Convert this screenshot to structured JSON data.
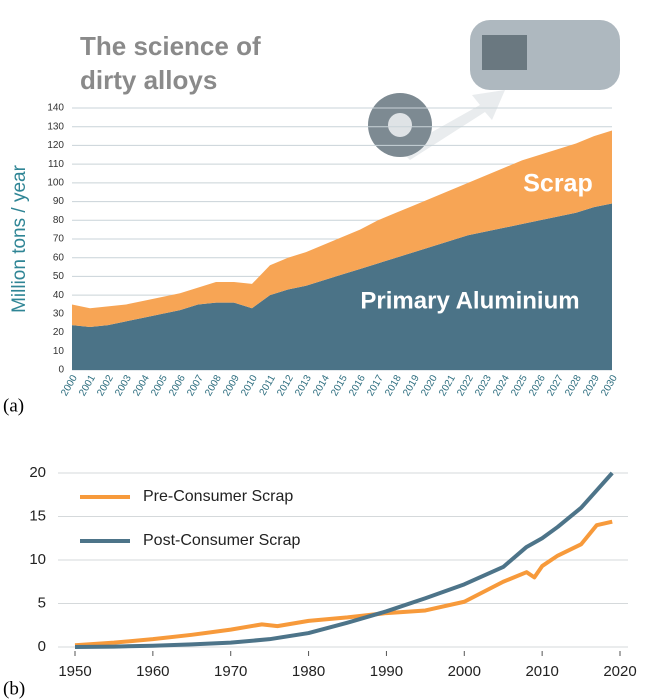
{
  "chart_data": [
    {
      "type": "stacked-area",
      "label": "(a)",
      "title": [
        "The science of",
        "dirty alloys"
      ],
      "y_label": "Million tons / year",
      "categories": [
        "2000",
        "2001",
        "2002",
        "2003",
        "2004",
        "2005",
        "2006",
        "2007",
        "2008",
        "2009",
        "2010",
        "2011",
        "2012",
        "2013",
        "2014",
        "2015",
        "2016",
        "2017",
        "2018",
        "2019",
        "2020",
        "2021",
        "2022",
        "2023",
        "2024",
        "2025",
        "2026",
        "2027",
        "2028",
        "2029",
        "2030"
      ],
      "series": [
        {
          "name": "Primary Aluminium",
          "color": "#4b7387",
          "values": [
            24,
            23,
            24,
            26,
            28,
            30,
            32,
            35,
            36,
            36,
            33,
            40,
            43,
            45,
            48,
            51,
            54,
            57,
            60,
            63,
            66,
            69,
            72,
            74,
            76,
            78,
            80,
            82,
            84,
            87,
            89
          ]
        },
        {
          "name": "Scrap",
          "color": "#f7a555",
          "values": [
            11,
            10,
            10,
            9,
            9,
            9,
            9,
            9,
            11,
            11,
            13,
            16,
            17,
            18,
            19,
            20,
            21,
            23,
            24,
            25,
            26,
            27,
            28,
            30,
            32,
            34,
            35,
            36,
            37,
            38,
            39
          ]
        }
      ],
      "ylim": [
        0,
        140
      ],
      "yticks": [
        0,
        10,
        20,
        30,
        40,
        50,
        60,
        70,
        80,
        90,
        100,
        110,
        120,
        130,
        140
      ],
      "grid": true
    },
    {
      "type": "line",
      "label": "(b)",
      "legend": "upper left",
      "series": [
        {
          "name": "Pre-Consumer Scrap",
          "color": "#f79a3b",
          "x": [
            1950,
            1955,
            1960,
            1965,
            1970,
            1974,
            1976,
            1980,
            1985,
            1990,
            1995,
            2000,
            2005,
            2008,
            2009,
            2010,
            2012,
            2015,
            2017,
            2019
          ],
          "values": [
            0.2,
            0.5,
            0.9,
            1.4,
            2.0,
            2.6,
            2.4,
            3.0,
            3.4,
            3.9,
            4.2,
            5.2,
            7.5,
            8.6,
            8.0,
            9.3,
            10.5,
            11.8,
            14.0,
            14.4
          ]
        },
        {
          "name": "Post-Consumer Scrap",
          "color": "#4d7489",
          "x": [
            1950,
            1955,
            1960,
            1965,
            1970,
            1975,
            1980,
            1985,
            1990,
            1995,
            2000,
            2005,
            2008,
            2010,
            2012,
            2015,
            2017,
            2019
          ],
          "values": [
            0,
            0.05,
            0.15,
            0.3,
            0.5,
            0.9,
            1.6,
            2.8,
            4.1,
            5.6,
            7.2,
            9.2,
            11.5,
            12.5,
            13.8,
            16.0,
            18.0,
            20.0
          ]
        }
      ],
      "xlim": [
        1950,
        2020
      ],
      "xticks": [
        1950,
        1960,
        1970,
        1980,
        1990,
        2000,
        2010,
        2020
      ],
      "ylim": [
        0,
        20
      ],
      "yticks": [
        0,
        5,
        10,
        15,
        20
      ],
      "grid": true
    }
  ]
}
